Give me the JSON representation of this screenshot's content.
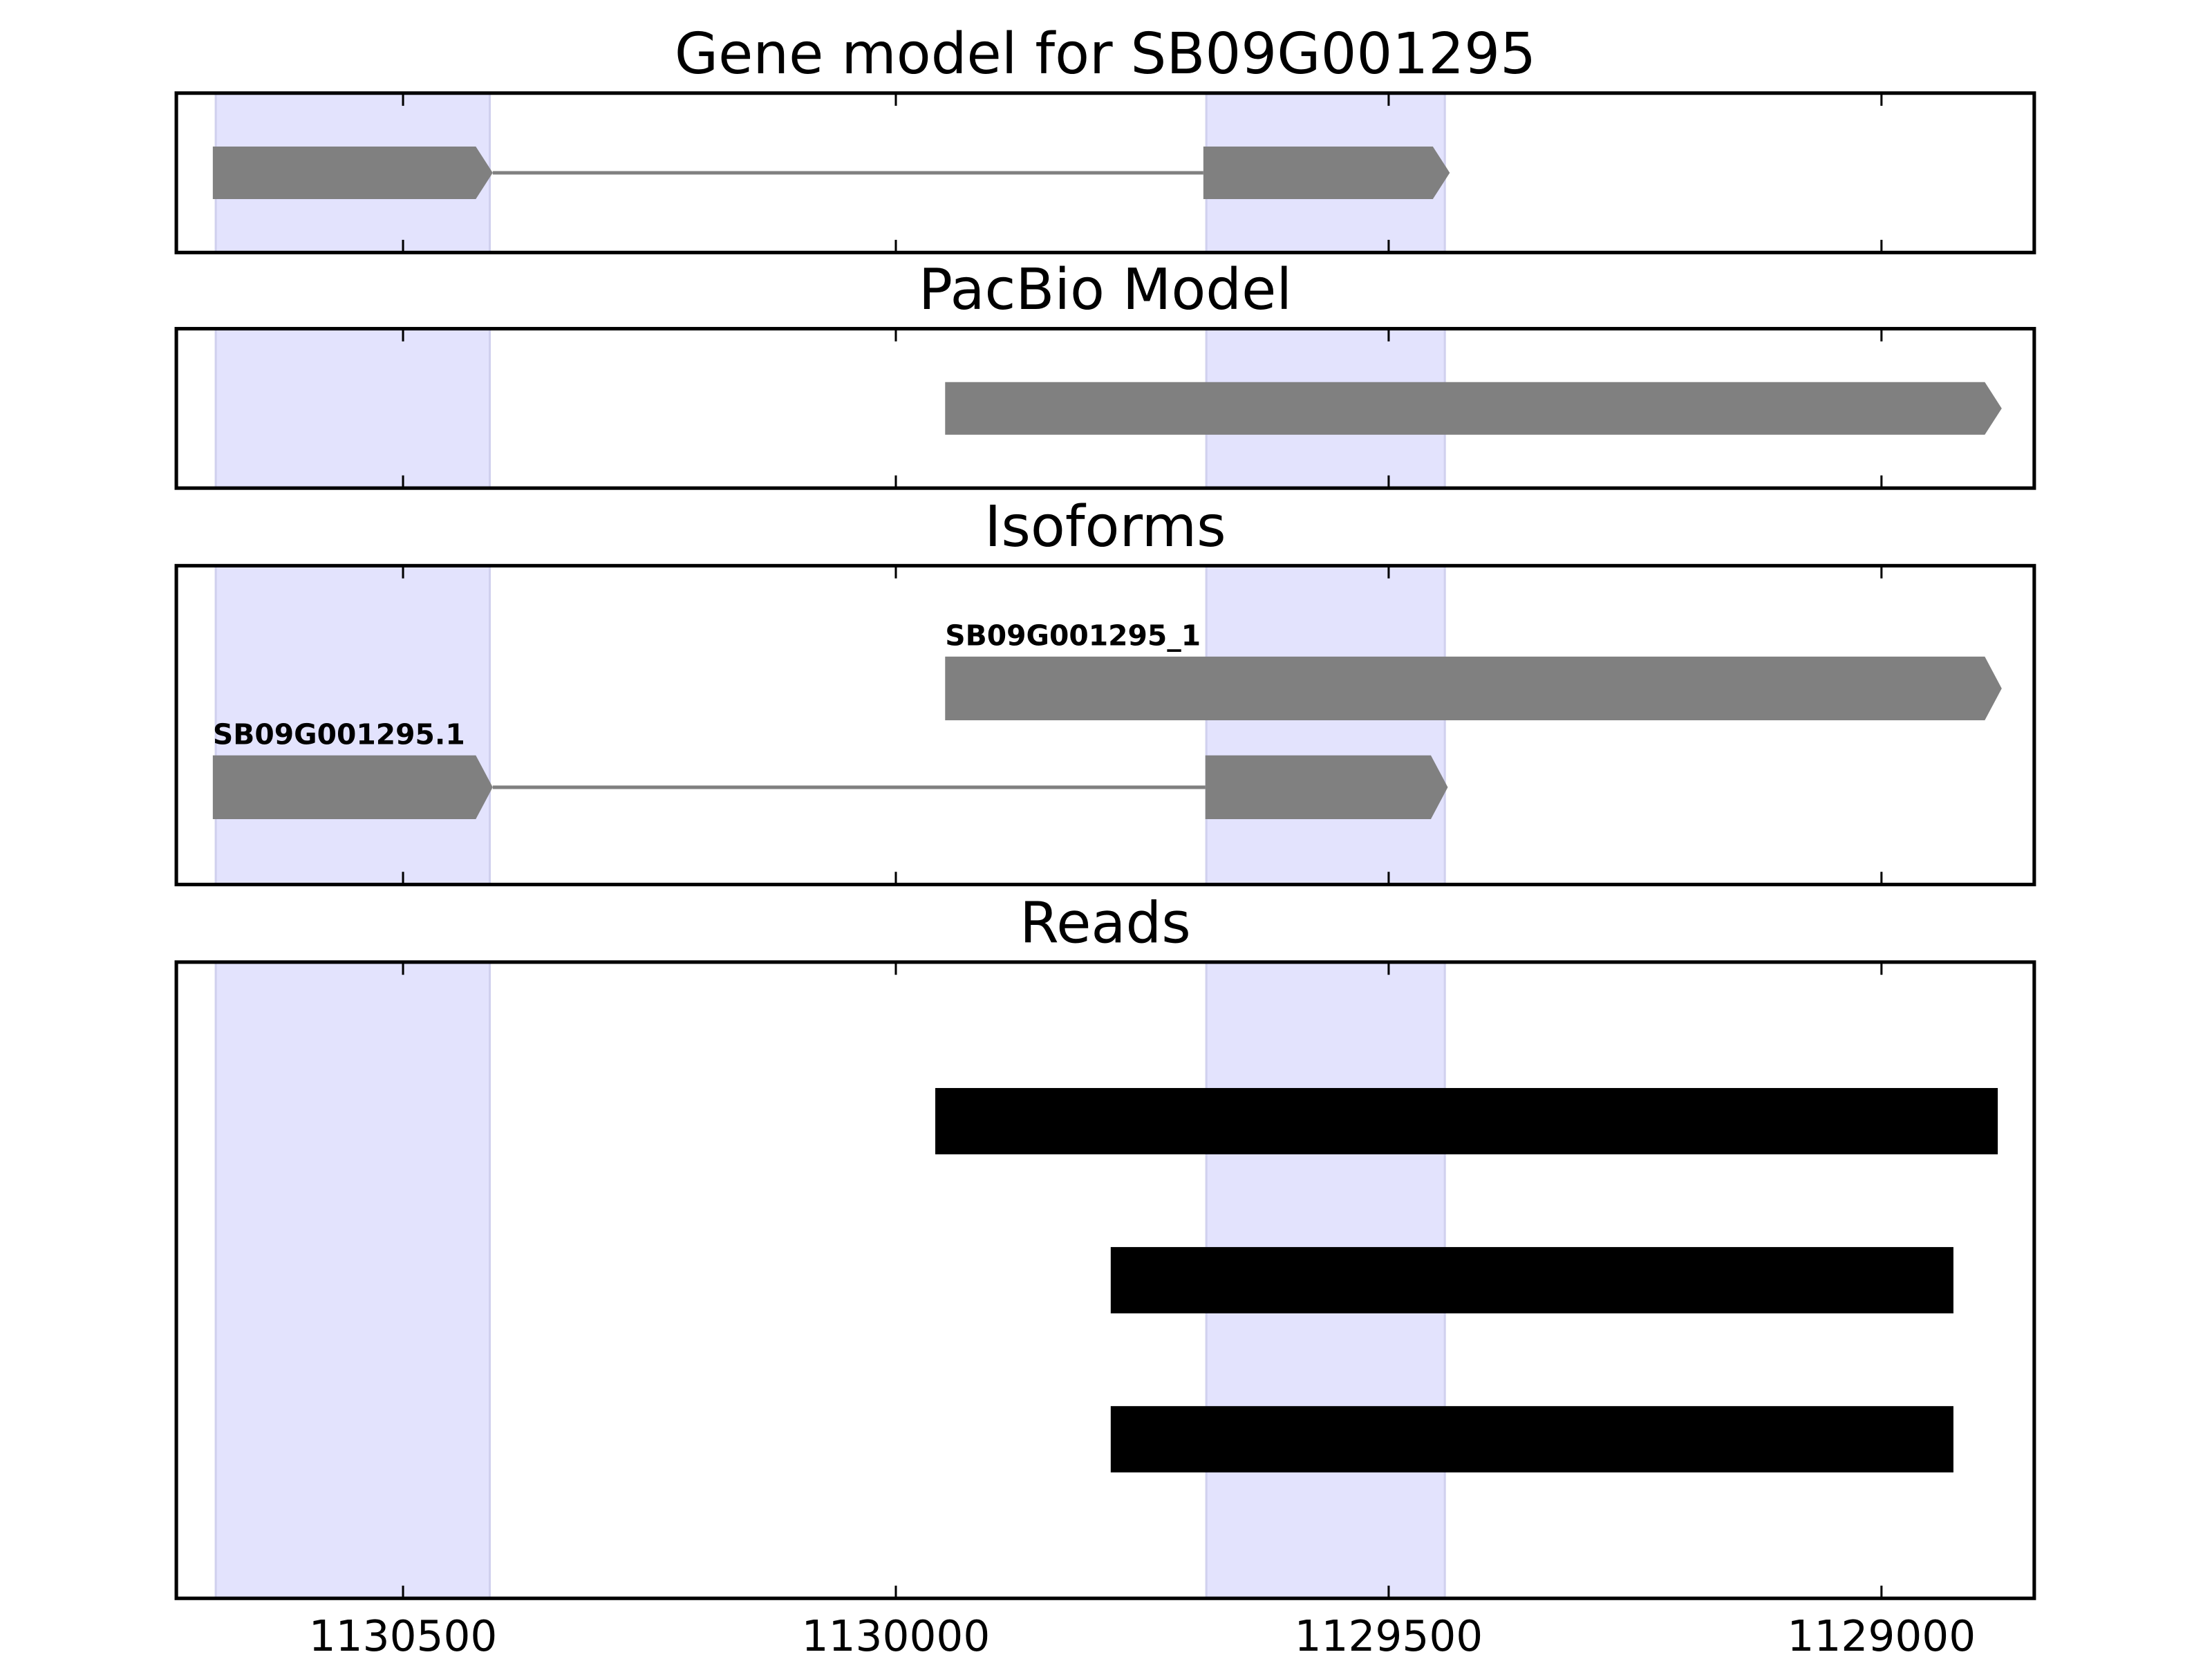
{
  "chart_data": [
    {
      "type": "gene-model",
      "title": "Gene model for SB09G001295",
      "xlim": [
        1130730,
        1128845
      ],
      "xticks": [
        1130500,
        1130000,
        1129500,
        1129000
      ],
      "highlight_color": "#e3e3fd",
      "highlights": [
        [
          1130690,
          1130412
        ],
        [
          1129685,
          1129443
        ]
      ],
      "color": "#808080",
      "features": [
        {
          "exons": [
            [
              1130693,
              1130409
            ],
            [
              1129688,
              1129438
            ]
          ]
        }
      ]
    },
    {
      "type": "gene-model",
      "title": "PacBio Model",
      "xlim": [
        1130730,
        1128845
      ],
      "xticks": [
        1130500,
        1130000,
        1129500,
        1129000
      ],
      "highlight_color": "#e3e3fd",
      "highlights": [
        [
          1130690,
          1130412
        ],
        [
          1129685,
          1129443
        ]
      ],
      "color": "#808080",
      "features": [
        {
          "exons": [
            [
              1129950,
              1128878
            ]
          ]
        }
      ]
    },
    {
      "type": "gene-model",
      "title": "Isoforms",
      "xlim": [
        1130730,
        1128845
      ],
      "xticks": [
        1130500,
        1130000,
        1129500,
        1129000
      ],
      "highlight_color": "#e3e3fd",
      "highlights": [
        [
          1130690,
          1130412
        ],
        [
          1129685,
          1129443
        ]
      ],
      "color": "#808080",
      "features": [
        {
          "name": "SB09G001295_1",
          "exons": [
            [
              1129950,
              1128878
            ]
          ]
        },
        {
          "name": "SB09G001295.1",
          "exons": [
            [
              1130693,
              1130409
            ],
            [
              1129686,
              1129440
            ]
          ]
        }
      ]
    },
    {
      "type": "reads",
      "title": "Reads",
      "xlim": [
        1130730,
        1128845
      ],
      "xticks": [
        1130500,
        1130000,
        1129500,
        1129000
      ],
      "highlight_color": "#e3e3fd",
      "highlights": [
        [
          1130690,
          1130412
        ],
        [
          1129685,
          1129443
        ]
      ],
      "color": "#000000",
      "reads": [
        [
          1129960,
          1128882
        ],
        [
          1129782,
          1128927
        ],
        [
          1129782,
          1128927
        ]
      ]
    }
  ]
}
